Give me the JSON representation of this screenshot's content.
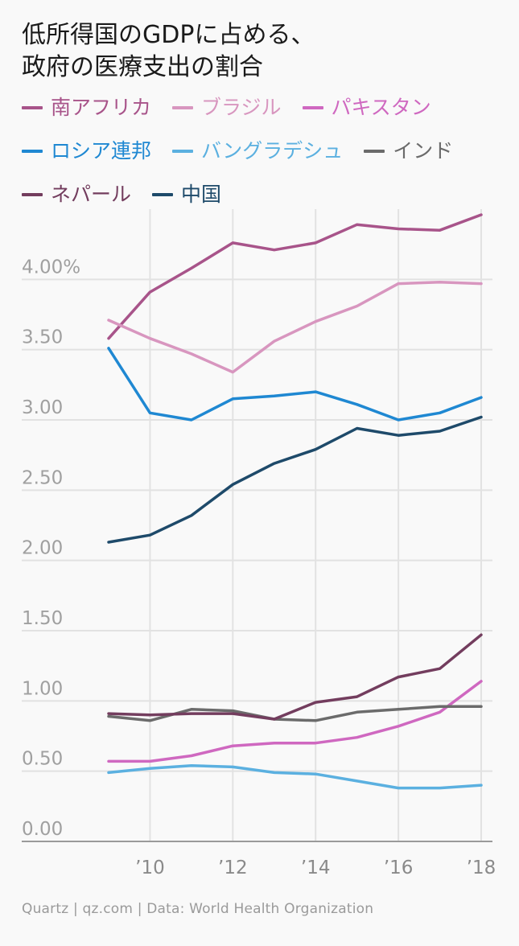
{
  "title": {
    "line1": "低所得国のGDPに占める、",
    "line2": "政府の医療支出の割合"
  },
  "source": "Quartz | qz.com | Data: World Health Organization",
  "chart_data": {
    "type": "line",
    "title": "低所得国のGDPに占める、政府の医療支出の割合",
    "x": [
      2009,
      2010,
      2011,
      2012,
      2013,
      2014,
      2015,
      2016,
      2017,
      2018
    ],
    "xticks": [
      2010,
      2012,
      2014,
      2016,
      2018
    ],
    "xtick_labels": [
      "’10",
      "’12",
      "’14",
      "’16",
      "’18"
    ],
    "yticks": [
      0,
      0.5,
      1.0,
      1.5,
      2.0,
      2.5,
      3.0,
      3.5,
      4.0
    ],
    "ytick_labels": [
      "0.00",
      "0.50",
      "1.00",
      "1.50",
      "2.00",
      "2.50",
      "3.00",
      "3.50",
      "4.00%"
    ],
    "ylim": [
      0,
      4.5
    ],
    "xlim": [
      2009,
      2018
    ],
    "grid": true,
    "legend_position": "top",
    "series": [
      {
        "name": "南アフリカ",
        "color": "#a8548a",
        "values": [
          3.58,
          3.91,
          4.08,
          4.26,
          4.21,
          4.26,
          4.39,
          4.36,
          4.35,
          4.46
        ]
      },
      {
        "name": "ブラジル",
        "color": "#d896bf",
        "values": [
          3.71,
          3.58,
          3.47,
          3.34,
          3.56,
          3.7,
          3.81,
          3.97,
          3.98,
          3.97
        ]
      },
      {
        "name": "パキスタン",
        "color": "#cf68c0",
        "values": [
          0.57,
          0.57,
          0.61,
          0.68,
          0.7,
          0.7,
          0.74,
          0.82,
          0.92,
          1.14
        ]
      },
      {
        "name": "ロシア連邦",
        "color": "#1f88d2",
        "values": [
          3.51,
          3.05,
          3.0,
          3.15,
          3.17,
          3.2,
          3.11,
          3.0,
          3.05,
          3.16
        ]
      },
      {
        "name": "バングラデシュ",
        "color": "#5bb0e0",
        "values": [
          0.49,
          0.52,
          0.54,
          0.53,
          0.49,
          0.48,
          0.43,
          0.38,
          0.38,
          0.4
        ]
      },
      {
        "name": "インド",
        "color": "#6b6b6b",
        "values": [
          0.89,
          0.86,
          0.94,
          0.93,
          0.87,
          0.86,
          0.92,
          0.94,
          0.96,
          0.96
        ]
      },
      {
        "name": "ネパール",
        "color": "#733d5e",
        "values": [
          0.91,
          0.9,
          0.91,
          0.91,
          0.87,
          0.99,
          1.03,
          1.17,
          1.23,
          1.47
        ]
      },
      {
        "name": "中国",
        "color": "#1e4a6a",
        "values": [
          2.13,
          2.18,
          2.32,
          2.54,
          2.69,
          2.79,
          2.94,
          2.89,
          2.92,
          3.02
        ]
      }
    ]
  },
  "legend_rows": [
    [
      0,
      1,
      2
    ],
    [
      3,
      4,
      5
    ],
    [
      6,
      7
    ]
  ]
}
